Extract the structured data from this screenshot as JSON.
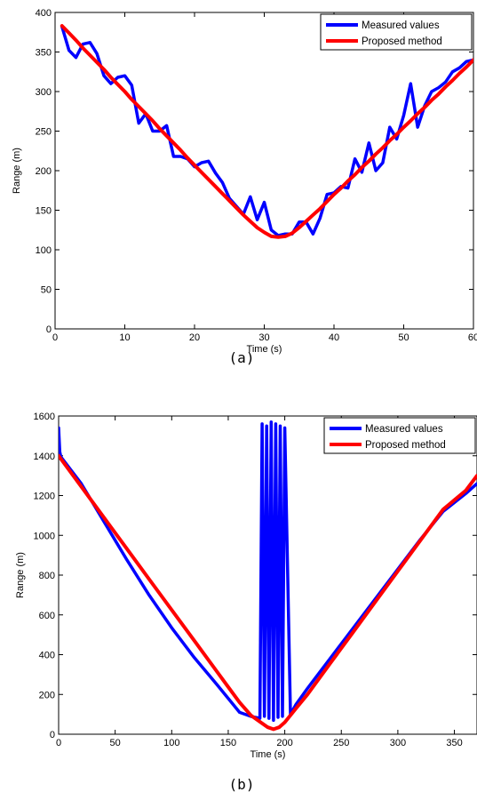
{
  "colors": {
    "measured": "#0000ff",
    "proposed": "#ff0000",
    "axis": "#000000",
    "background": "#ffffff"
  },
  "chart_data": [
    {
      "type": "line",
      "caption": "(a)",
      "xlabel": "Time (s)",
      "ylabel": "Range (m)",
      "xlim": [
        0,
        60
      ],
      "ylim": [
        0,
        400
      ],
      "xticks": [
        0,
        10,
        20,
        30,
        40,
        50,
        60
      ],
      "yticks": [
        0,
        50,
        100,
        150,
        200,
        250,
        300,
        350,
        400
      ],
      "grid": false,
      "legend_position": "top-right",
      "series": [
        {
          "name": "Measured values",
          "color": "#0000ff",
          "x": [
            1,
            2,
            3,
            4,
            5,
            6,
            7,
            8,
            9,
            10,
            11,
            12,
            13,
            14,
            15,
            16,
            17,
            18,
            19,
            20,
            21,
            22,
            23,
            24,
            25,
            26,
            27,
            28,
            29,
            30,
            31,
            32,
            33,
            34,
            35,
            36,
            37,
            38,
            39,
            40,
            41,
            42,
            43,
            44,
            45,
            46,
            47,
            48,
            49,
            50,
            51,
            52,
            53,
            54,
            55,
            56,
            57,
            58,
            59,
            60
          ],
          "y": [
            382,
            352,
            343,
            360,
            362,
            348,
            320,
            310,
            318,
            320,
            308,
            260,
            272,
            250,
            250,
            257,
            218,
            218,
            215,
            205,
            210,
            212,
            197,
            185,
            165,
            155,
            145,
            167,
            138,
            160,
            125,
            118,
            120,
            120,
            135,
            135,
            120,
            140,
            170,
            172,
            180,
            178,
            215,
            198,
            235,
            200,
            210,
            255,
            240,
            270,
            310,
            255,
            282,
            300,
            305,
            312,
            325,
            330,
            338,
            340
          ]
        },
        {
          "name": "Proposed method",
          "color": "#ff0000",
          "x": [
            1,
            2,
            3,
            4,
            5,
            6,
            7,
            8,
            9,
            10,
            11,
            12,
            13,
            14,
            15,
            16,
            17,
            18,
            19,
            20,
            21,
            22,
            23,
            24,
            25,
            26,
            27,
            28,
            29,
            30,
            31,
            32,
            33,
            34,
            35,
            36,
            37,
            38,
            39,
            40,
            41,
            42,
            43,
            44,
            45,
            46,
            47,
            48,
            49,
            50,
            51,
            52,
            53,
            54,
            55,
            56,
            57,
            58,
            59,
            60
          ],
          "y": [
            383,
            374,
            365,
            355,
            346,
            337,
            328,
            318,
            309,
            300,
            290,
            281,
            272,
            263,
            253,
            244,
            235,
            226,
            216,
            207,
            198,
            189,
            180,
            171,
            162,
            153,
            144,
            136,
            128,
            122,
            117,
            116,
            117,
            121,
            128,
            136,
            144,
            152,
            161,
            170,
            178,
            187,
            195,
            204,
            212,
            221,
            229,
            238,
            246,
            255,
            263,
            272,
            280,
            289,
            297,
            306,
            314,
            323,
            331,
            340
          ]
        }
      ]
    },
    {
      "type": "line",
      "caption": "(b)",
      "xlabel": "Time (s)",
      "ylabel": "Range (m)",
      "xlim": [
        0,
        370
      ],
      "ylim": [
        0,
        1600
      ],
      "xticks": [
        0,
        50,
        100,
        150,
        200,
        250,
        300,
        350
      ],
      "yticks": [
        0,
        200,
        400,
        600,
        800,
        1000,
        1200,
        1400,
        1600
      ],
      "grid": false,
      "legend_position": "top-right",
      "series": [
        {
          "name": "Measured values",
          "color": "#0000ff",
          "x": [
            0,
            1,
            2,
            20,
            40,
            60,
            80,
            100,
            120,
            140,
            160,
            170,
            178,
            180,
            182,
            184,
            186,
            188,
            190,
            192,
            194,
            196,
            198,
            200,
            205,
            210,
            220,
            240,
            260,
            280,
            300,
            320,
            340,
            360,
            370
          ],
          "y": [
            1540,
            1420,
            1395,
            1260,
            1070,
            880,
            700,
            535,
            385,
            250,
            110,
            90,
            80,
            1560,
            90,
            1550,
            80,
            1570,
            70,
            1560,
            85,
            1550,
            90,
            1540,
            100,
            150,
            230,
            380,
            530,
            680,
            830,
            980,
            1120,
            1210,
            1260
          ],
          "annotation": "dense oscillation between ~70 and ~1570 m for 178–200 s"
        },
        {
          "name": "Proposed method",
          "color": "#ff0000",
          "x": [
            0,
            20,
            40,
            60,
            80,
            100,
            120,
            140,
            160,
            170,
            180,
            185,
            190,
            195,
            200,
            210,
            220,
            240,
            260,
            280,
            300,
            320,
            340,
            360,
            370
          ],
          "y": [
            1400,
            1245,
            1090,
            935,
            780,
            625,
            470,
            315,
            160,
            95,
            55,
            35,
            25,
            35,
            60,
            130,
            200,
            355,
            510,
            665,
            820,
            975,
            1130,
            1225,
            1300
          ]
        }
      ]
    }
  ]
}
